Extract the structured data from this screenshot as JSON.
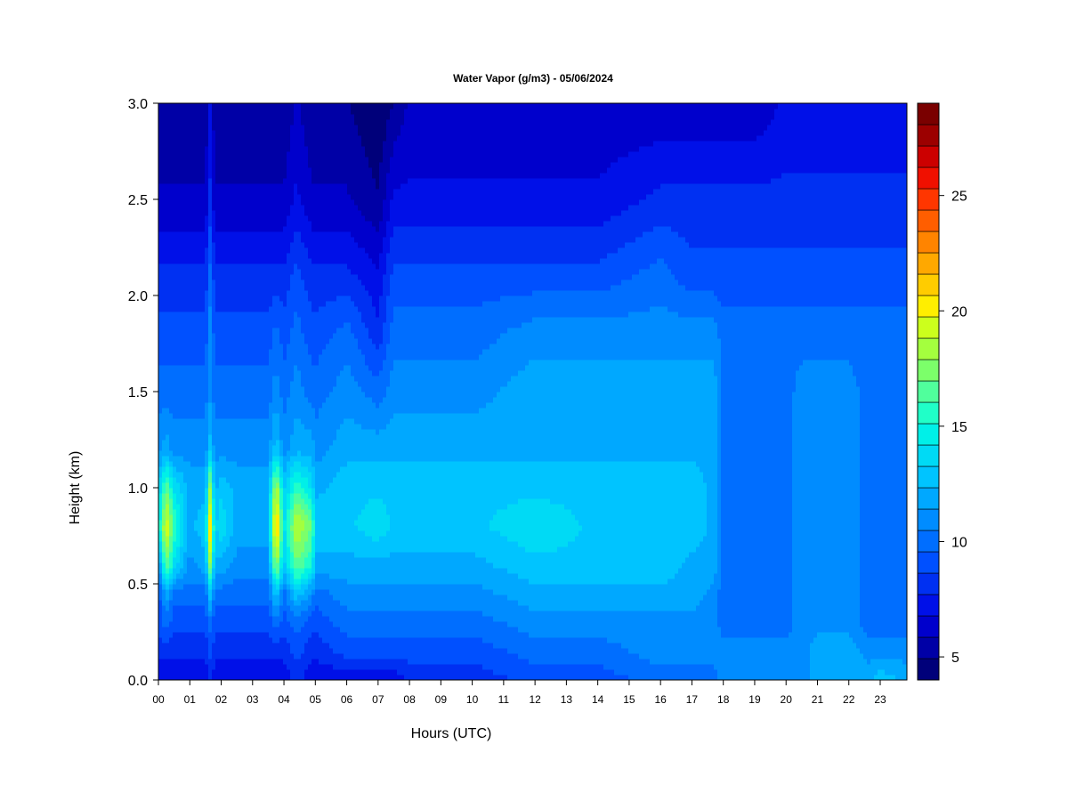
{
  "chart_data": {
    "type": "heatmap",
    "title": "Water Vapor (g/m3) - 05/06/2024",
    "xlabel": "Hours (UTC)",
    "ylabel": "Height (km)",
    "xlim": [
      0,
      24
    ],
    "ylim": [
      0.0,
      3.0
    ],
    "x_ticks": [
      "00",
      "01",
      "02",
      "03",
      "04",
      "05",
      "06",
      "07",
      "08",
      "09",
      "10",
      "11",
      "12",
      "13",
      "14",
      "15",
      "16",
      "17",
      "18",
      "19",
      "20",
      "21",
      "22",
      "23"
    ],
    "y_ticks": [
      "0.0",
      "0.5",
      "1.0",
      "1.5",
      "2.0",
      "2.5",
      "3.0"
    ],
    "colorbar": {
      "range": [
        4,
        29
      ],
      "ticks": [
        "5",
        "10",
        "15",
        "20",
        "25"
      ],
      "levels": 25,
      "colors": [
        "#00007a",
        "#0000a6",
        "#0000cc",
        "#0010e8",
        "#0030f2",
        "#0050ff",
        "#006eff",
        "#008cff",
        "#00a8ff",
        "#00c4ff",
        "#00daf5",
        "#00f0e8",
        "#20ffc8",
        "#50ff9c",
        "#7cff6a",
        "#a4ff3e",
        "#ccff1c",
        "#ffee00",
        "#ffcc00",
        "#ffa800",
        "#ff8400",
        "#ff5e00",
        "#ff3600",
        "#f01000",
        "#cc0000",
        "#9c0000",
        "#7a0000"
      ]
    },
    "hours": [
      0,
      0.25,
      0.5,
      1,
      1.5,
      1.65,
      1.8,
      2,
      2.5,
      3,
      3.5,
      3.75,
      4,
      4.4,
      4.9,
      5,
      6,
      7,
      7.5,
      8,
      10,
      12,
      14,
      16,
      17,
      17.7,
      18,
      19,
      20,
      20.5,
      21,
      22,
      22.6,
      23,
      23.9
    ],
    "heights": [
      0,
      0.15,
      0.3,
      0.45,
      0.6,
      0.8,
      1.0,
      1.2,
      1.5,
      1.8,
      2.1,
      2.5,
      3.0
    ],
    "values": [
      [
        7,
        8,
        9,
        9,
        11,
        14,
        13,
        11,
        10,
        9,
        8,
        6,
        5
      ],
      [
        7,
        8,
        10,
        12,
        17,
        20,
        17,
        12,
        10,
        9,
        8,
        6,
        5
      ],
      [
        7,
        8,
        9,
        10,
        14,
        16,
        14,
        11,
        10,
        9,
        8,
        6,
        5
      ],
      [
        7,
        8,
        9,
        10,
        11,
        12,
        12,
        11,
        10,
        9,
        8,
        6,
        5
      ],
      [
        7,
        8,
        9,
        10,
        12,
        13,
        12,
        11,
        10,
        9,
        8,
        6,
        5
      ],
      [
        8,
        9,
        10,
        13,
        18,
        21,
        18,
        13,
        11,
        11,
        10,
        8,
        7
      ],
      [
        7,
        8,
        9,
        10,
        12,
        13,
        12,
        11,
        10,
        9,
        8,
        6,
        5
      ],
      [
        7,
        8,
        9,
        10,
        12,
        14,
        13,
        11,
        10,
        9,
        8,
        6,
        5
      ],
      [
        7,
        8,
        9,
        10,
        11,
        12,
        12,
        11,
        10,
        9,
        8,
        6,
        5
      ],
      [
        7,
        8,
        9,
        10,
        11,
        12,
        12,
        11,
        10,
        9,
        8,
        6,
        5
      ],
      [
        7,
        8,
        9,
        10,
        11,
        12,
        12,
        11,
        10,
        9,
        8,
        6,
        5
      ],
      [
        7,
        8,
        10,
        13,
        18,
        22,
        19,
        13,
        11,
        10,
        8,
        6,
        5
      ],
      [
        7,
        8,
        9,
        10,
        13,
        14,
        13,
        11,
        10,
        9,
        8,
        6,
        5
      ],
      [
        8,
        9,
        10,
        13,
        17,
        19,
        16,
        12,
        11,
        10,
        9,
        7,
        6
      ],
      [
        7,
        8,
        9,
        11,
        15,
        17,
        14,
        12,
        10,
        9,
        8,
        6,
        5
      ],
      [
        7,
        8,
        9,
        10,
        12,
        13,
        12,
        11,
        10,
        9,
        8,
        6,
        5
      ],
      [
        7,
        9,
        10,
        11,
        12,
        13,
        13,
        12,
        11,
        10,
        8,
        6,
        5
      ],
      [
        7,
        9,
        10,
        11,
        12,
        14,
        13,
        12,
        10,
        8,
        7,
        5,
        4
      ],
      [
        7,
        9,
        10,
        11,
        12,
        13,
        13,
        12,
        11,
        10,
        9,
        7,
        5
      ],
      [
        8,
        9,
        10,
        11,
        12,
        13,
        13,
        12,
        11,
        10,
        9,
        7,
        6
      ],
      [
        8,
        9,
        10,
        11,
        12,
        13,
        13,
        12,
        11,
        10,
        9,
        7,
        6
      ],
      [
        9,
        10,
        11,
        12,
        13,
        14,
        13,
        12,
        12,
        11,
        9,
        7,
        6
      ],
      [
        9,
        10,
        11,
        12,
        13,
        13,
        13,
        12,
        12,
        11,
        9,
        7,
        6
      ],
      [
        10,
        11,
        11,
        12,
        13,
        13,
        13,
        12,
        12,
        11,
        10,
        8,
        6
      ],
      [
        10,
        11,
        11,
        12,
        12,
        13,
        13,
        12,
        12,
        11,
        9,
        8,
        6
      ],
      [
        10,
        11,
        11,
        11,
        12,
        12,
        12,
        12,
        12,
        11,
        9,
        8,
        6
      ],
      [
        11,
        11,
        10,
        10,
        10,
        10,
        10,
        10,
        10,
        10,
        9,
        8,
        6
      ],
      [
        11,
        11,
        10,
        10,
        10,
        10,
        10,
        10,
        10,
        10,
        9,
        8,
        6
      ],
      [
        11,
        11,
        10,
        10,
        10,
        10,
        10,
        10,
        10,
        10,
        9,
        8,
        7
      ],
      [
        11,
        11,
        11,
        11,
        11,
        11,
        11,
        11,
        11,
        10,
        9,
        8,
        7
      ],
      [
        12,
        12,
        11,
        11,
        11,
        11,
        11,
        11,
        11,
        10,
        9,
        8,
        7
      ],
      [
        12,
        12,
        11,
        11,
        11,
        11,
        11,
        11,
        11,
        10,
        9,
        8,
        7
      ],
      [
        12,
        11,
        10,
        10,
        10,
        10,
        10,
        10,
        10,
        10,
        9,
        8,
        7
      ],
      [
        13,
        11,
        10,
        10,
        10,
        10,
        10,
        10,
        10,
        10,
        9,
        8,
        7
      ],
      [
        12,
        11,
        10,
        10,
        10,
        10,
        10,
        10,
        10,
        10,
        9,
        8,
        7
      ]
    ]
  }
}
